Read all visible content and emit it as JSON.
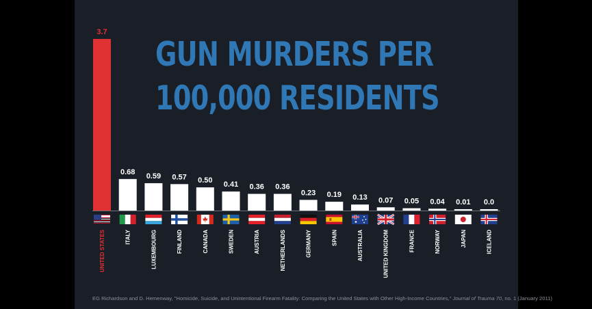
{
  "title_lines": [
    "GUN MURDERS PER",
    "100,000 RESIDENTS"
  ],
  "citation": {
    "prefix": "EG Richardson and D. Hemenway, \"Homicide, Suicide, and Unintentional Firearm Fatality: Comparing the United States with Other High-Income Countries,\" ",
    "journal": "Journal of Trauma 70",
    "suffix": ", no. 1 (January 2011)"
  },
  "colors": {
    "background": "#1a1f27",
    "title": "#2f78b5",
    "highlight_bar": "#e03232",
    "bar": "#ffffff",
    "text": "#ffffff",
    "highlight_text": "#e03232"
  },
  "chart_data": {
    "type": "bar",
    "title": "GUN MURDERS PER 100,000 RESIDENTS",
    "categories": [
      "UNITED STATES",
      "ITALY",
      "LUXEMBOURG",
      "FINLAND",
      "CANADA",
      "SWEDEN",
      "AUSTRIA",
      "NETHERLANDS",
      "GERMANY",
      "SPAIN",
      "AUSTRALIA",
      "UNITED KINGDOM",
      "FRANCE",
      "NORWAY",
      "JAPAN",
      "ICELAND"
    ],
    "values": [
      3.7,
      0.68,
      0.59,
      0.57,
      0.5,
      0.41,
      0.36,
      0.36,
      0.23,
      0.19,
      0.13,
      0.07,
      0.05,
      0.04,
      0.01,
      0.0
    ],
    "value_labels": [
      "3.7",
      "0.68",
      "0.59",
      "0.57",
      "0.50",
      "0.41",
      "0.36",
      "0.36",
      "0.23",
      "0.19",
      "0.13",
      "0.07",
      "0.05",
      "0.04",
      "0.01",
      "0.0"
    ],
    "flags": [
      "flag-usa-icon",
      "flag-italy-icon",
      "flag-luxembourg-icon",
      "flag-finland-icon",
      "flag-canada-icon",
      "flag-sweden-icon",
      "flag-austria-icon",
      "flag-netherlands-icon",
      "flag-germany-icon",
      "flag-spain-icon",
      "flag-australia-icon",
      "flag-uk-icon",
      "flag-france-icon",
      "flag-norway-icon",
      "flag-japan-icon",
      "flag-iceland-icon"
    ],
    "highlight_index": 0,
    "ylim": [
      0,
      3.7
    ],
    "grid": false,
    "legend": "none"
  }
}
